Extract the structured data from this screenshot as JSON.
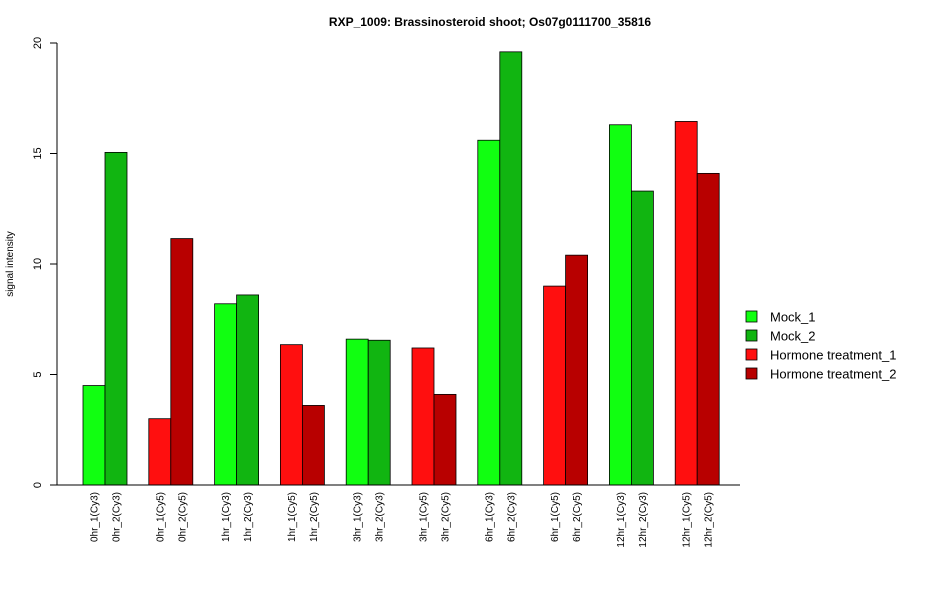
{
  "chart_data": {
    "type": "bar",
    "title": "RXP_1009: Brassinosteroid shoot; Os07g0111700_35816",
    "xlabel": "",
    "ylabel": "signal intensity",
    "ylim": [
      0,
      20
    ],
    "yticks": [
      0,
      5,
      10,
      15,
      20
    ],
    "grid": false,
    "legend_position": "right",
    "series": [
      {
        "name": "Mock_1",
        "color": "#11ff11"
      },
      {
        "name": "Mock_2",
        "color": "#11b511"
      },
      {
        "name": "Hormone treatment_1",
        "color": "#ff0f0f"
      },
      {
        "name": "Hormone treatment_2",
        "color": "#b80000"
      }
    ],
    "bars": [
      {
        "label": "0hr_1(Cy3)",
        "value": 4.5,
        "series": 0
      },
      {
        "label": "0hr_2(Cy3)",
        "value": 15.05,
        "series": 1
      },
      {
        "label": "0hr_1(Cy5)",
        "value": 3.0,
        "series": 2
      },
      {
        "label": "0hr_2(Cy5)",
        "value": 11.15,
        "series": 3
      },
      {
        "label": "1hr_1(Cy3)",
        "value": 8.2,
        "series": 0
      },
      {
        "label": "1hr_2(Cy3)",
        "value": 8.6,
        "series": 1
      },
      {
        "label": "1hr_1(Cy5)",
        "value": 6.35,
        "series": 2
      },
      {
        "label": "1hr_2(Cy5)",
        "value": 3.6,
        "series": 3
      },
      {
        "label": "3hr_1(Cy3)",
        "value": 6.6,
        "series": 0
      },
      {
        "label": "3hr_2(Cy3)",
        "value": 6.55,
        "series": 1
      },
      {
        "label": "3hr_1(Cy5)",
        "value": 6.2,
        "series": 2
      },
      {
        "label": "3hr_2(Cy5)",
        "value": 4.1,
        "series": 3
      },
      {
        "label": "6hr_1(Cy3)",
        "value": 15.6,
        "series": 0
      },
      {
        "label": "6hr_2(Cy3)",
        "value": 19.6,
        "series": 1
      },
      {
        "label": "6hr_1(Cy5)",
        "value": 9.0,
        "series": 2
      },
      {
        "label": "6hr_2(Cy5)",
        "value": 10.4,
        "series": 3
      },
      {
        "label": "12hr_1(Cy3)",
        "value": 16.3,
        "series": 0
      },
      {
        "label": "12hr_2(Cy3)",
        "value": 13.3,
        "series": 1
      },
      {
        "label": "12hr_1(Cy5)",
        "value": 16.45,
        "series": 2
      },
      {
        "label": "12hr_2(Cy5)",
        "value": 14.1,
        "series": 3
      }
    ]
  }
}
